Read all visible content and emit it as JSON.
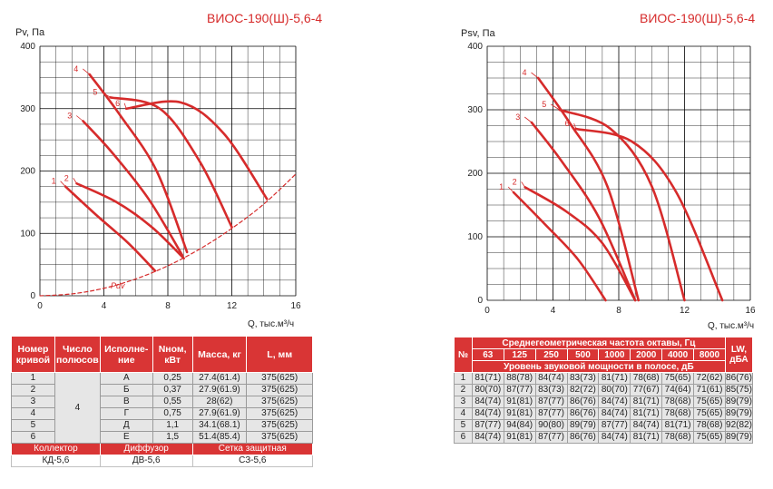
{
  "chart_data": [
    {
      "type": "line",
      "title": "ВИОС-190(Ш)-5,6-4",
      "ylabel": "Pv, Па",
      "xlabel": "Q, тыс.м³/ч",
      "xlim": [
        0,
        16
      ],
      "ylim": [
        0,
        400
      ],
      "xticks": [
        "0",
        "4",
        "8",
        "12",
        "16"
      ],
      "yticks": [
        "0",
        "100",
        "200",
        "300",
        "400"
      ],
      "grid": true,
      "series": [
        {
          "name": "1",
          "x": [
            1.6,
            3.5,
            5.5,
            7.2
          ],
          "y": [
            175,
            130,
            85,
            40
          ]
        },
        {
          "name": "2",
          "x": [
            2.3,
            4.8,
            7.0,
            9.0
          ],
          "y": [
            180,
            150,
            110,
            60
          ]
        },
        {
          "name": "3",
          "x": [
            2.7,
            4.5,
            6.8,
            8.9
          ],
          "y": [
            280,
            230,
            155,
            65
          ]
        },
        {
          "name": "4",
          "x": [
            3.1,
            5.0,
            7.3,
            9.2
          ],
          "y": [
            355,
            290,
            200,
            70
          ]
        },
        {
          "name": "5",
          "x": [
            4.4,
            7.5,
            10.0,
            12.0
          ],
          "y": [
            318,
            300,
            215,
            110
          ]
        },
        {
          "name": "6",
          "x": [
            5.4,
            8.8,
            11.5,
            14.2
          ],
          "y": [
            300,
            310,
            260,
            155
          ]
        },
        {
          "name": "Pdv",
          "dashed": true,
          "x": [
            0,
            2,
            4,
            6,
            8,
            10,
            12,
            14,
            16
          ],
          "y": [
            0,
            3,
            12,
            27,
            48,
            75,
            108,
            147,
            195
          ]
        }
      ]
    },
    {
      "type": "line",
      "title": "ВИОС-190(Ш)-5,6-4",
      "ylabel": "Psv, Па",
      "xlabel": "Q, тыс.м³/ч",
      "xlim": [
        0,
        16
      ],
      "ylim": [
        0,
        400
      ],
      "xticks": [
        "0",
        "4",
        "8",
        "12",
        "16"
      ],
      "yticks": [
        "0",
        "100",
        "200",
        "300",
        "400"
      ],
      "grid": true,
      "series": [
        {
          "name": "1",
          "x": [
            1.6,
            3.5,
            5.5,
            7.2
          ],
          "y": [
            170,
            120,
            65,
            0
          ]
        },
        {
          "name": "2",
          "x": [
            2.3,
            4.8,
            7.0,
            9.0
          ],
          "y": [
            178,
            140,
            90,
            0
          ]
        },
        {
          "name": "3",
          "x": [
            2.7,
            4.5,
            6.8,
            9.0
          ],
          "y": [
            280,
            220,
            130,
            0
          ]
        },
        {
          "name": "4",
          "x": [
            3.1,
            5.0,
            7.3,
            9.2
          ],
          "y": [
            350,
            280,
            180,
            0
          ]
        },
        {
          "name": "5",
          "x": [
            4.4,
            7.5,
            10.0,
            12.0
          ],
          "y": [
            300,
            270,
            180,
            0
          ]
        },
        {
          "name": "6",
          "x": [
            5.4,
            8.8,
            11.5,
            14.3
          ],
          "y": [
            270,
            250,
            170,
            0
          ]
        }
      ]
    }
  ],
  "table_curves": {
    "headers": [
      "Номер кривой",
      "Число полюсов",
      "Исполне-ние",
      "Nном, кВт",
      "Масса, кг",
      "L, мм"
    ],
    "poles": "4",
    "rows": [
      [
        "1",
        "А",
        "0,25",
        "27.4(61.4)",
        "375(625)"
      ],
      [
        "2",
        "Б",
        "0,37",
        "27.9(61.9)",
        "375(625)"
      ],
      [
        "3",
        "В",
        "0,55",
        "28(62)",
        "375(625)"
      ],
      [
        "4",
        "Г",
        "0,75",
        "27.9(61.9)",
        "375(625)"
      ],
      [
        "5",
        "Д",
        "1,1",
        "34.1(68.1)",
        "375(625)"
      ],
      [
        "6",
        "Е",
        "1,5",
        "51.4(85.4)",
        "375(625)"
      ]
    ],
    "footer_labels": [
      "Коллектор",
      "Диффузор",
      "Сетка защитная"
    ],
    "footer_values": [
      "КД-5,6",
      "ДВ-5,6",
      "СЗ-5,6"
    ]
  },
  "table_sound": {
    "col_no": "№",
    "freq_header": "Среднегеометрическая частота октавы, Гц",
    "freqs": [
      "63",
      "125",
      "250",
      "500",
      "1000",
      "2000",
      "4000",
      "8000"
    ],
    "power_header": "Уровень звуковой мощности в полосе, дБ",
    "lw_header": "LW, дБА",
    "rows": [
      [
        "1",
        "81(71)",
        "88(78)",
        "84(74)",
        "83(73)",
        "81(71)",
        "78(68)",
        "75(65)",
        "72(62)",
        "86(76)"
      ],
      [
        "2",
        "80(70)",
        "87(77)",
        "83(73)",
        "82(72)",
        "80(70)",
        "77(67)",
        "74(64)",
        "71(61)",
        "85(75)"
      ],
      [
        "3",
        "84(74)",
        "91(81)",
        "87(77)",
        "86(76)",
        "84(74)",
        "81(71)",
        "78(68)",
        "75(65)",
        "89(79)"
      ],
      [
        "4",
        "84(74)",
        "91(81)",
        "87(77)",
        "86(76)",
        "84(74)",
        "81(71)",
        "78(68)",
        "75(65)",
        "89(79)"
      ],
      [
        "5",
        "87(77)",
        "94(84)",
        "90(80)",
        "89(79)",
        "87(77)",
        "84(74)",
        "81(71)",
        "78(68)",
        "92(82)"
      ],
      [
        "6",
        "84(74)",
        "91(81)",
        "87(77)",
        "86(76)",
        "84(74)",
        "81(71)",
        "78(68)",
        "75(65)",
        "89(79)"
      ]
    ]
  }
}
